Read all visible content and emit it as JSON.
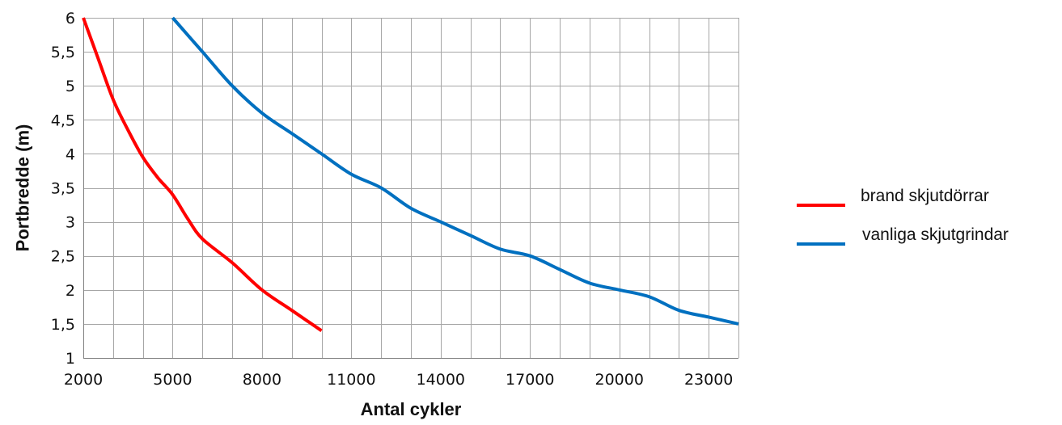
{
  "chart_data": {
    "type": "line",
    "xlabel": "Antal cykler",
    "ylabel": "Portbredde (m)",
    "xlim": [
      2000,
      24000
    ],
    "ylim": [
      1,
      6
    ],
    "x_ticks": [
      2000,
      5000,
      8000,
      11000,
      14000,
      17000,
      20000,
      23000
    ],
    "y_ticks": [
      {
        "value": 1,
        "label": "1"
      },
      {
        "value": 1.5,
        "label": "1,5"
      },
      {
        "value": 2,
        "label": "2"
      },
      {
        "value": 2.5,
        "label": "2,5"
      },
      {
        "value": 3,
        "label": "3"
      },
      {
        "value": 3.5,
        "label": "3,5"
      },
      {
        "value": 4,
        "label": "4"
      },
      {
        "value": 4.5,
        "label": "4,5"
      },
      {
        "value": 5,
        "label": "5"
      },
      {
        "value": 5.5,
        "label": "5,5"
      },
      {
        "value": 6,
        "label": "6"
      }
    ],
    "grid": true,
    "legend_position": "right",
    "series": [
      {
        "name": "brand skjutdörrar",
        "color": "#ff0000",
        "x": [
          2000,
          2500,
          3000,
          3500,
          4000,
          4500,
          5000,
          5500,
          6000,
          7000,
          8000,
          9000,
          10000
        ],
        "y": [
          6,
          5.4,
          4.8,
          4.35,
          3.95,
          3.65,
          3.4,
          3.05,
          2.75,
          2.4,
          2.0,
          1.7,
          1.4
        ]
      },
      {
        "name": "vanliga skjutgrindar",
        "color": "#0070c0",
        "x": [
          5000,
          6000,
          7000,
          8000,
          9000,
          10000,
          11000,
          12000,
          13000,
          14000,
          15000,
          16000,
          17000,
          18000,
          19000,
          20000,
          21000,
          22000,
          23000,
          24000
        ],
        "y": [
          6,
          5.5,
          5.0,
          4.6,
          4.3,
          4.0,
          3.7,
          3.5,
          3.2,
          3.0,
          2.8,
          2.6,
          2.5,
          2.3,
          2.1,
          2.0,
          1.9,
          1.7,
          1.6,
          1.5
        ]
      }
    ]
  }
}
